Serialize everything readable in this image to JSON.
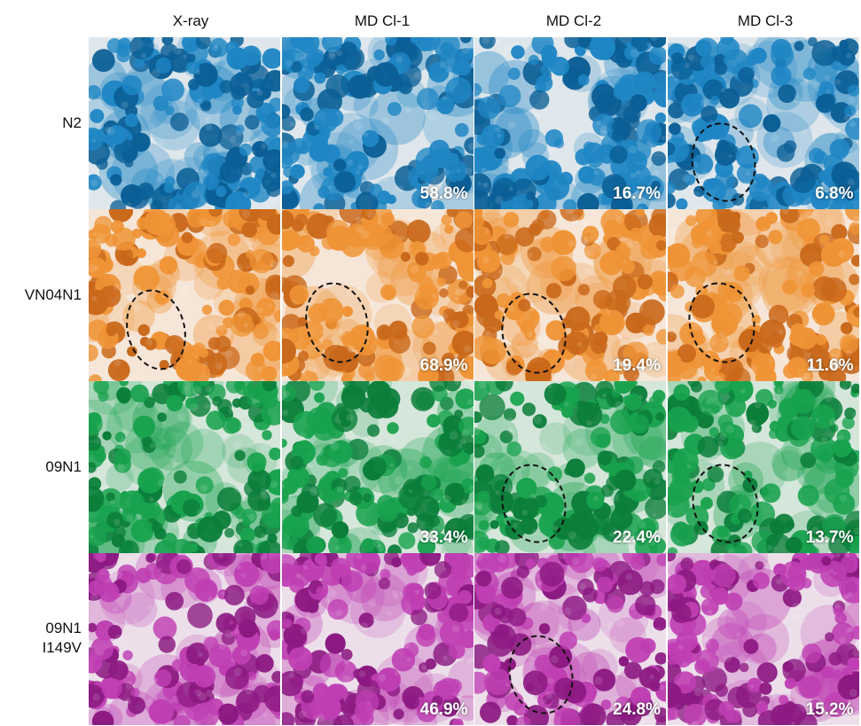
{
  "columns": [
    "X-ray",
    "MD Cl-1",
    "MD Cl-2",
    "MD Cl-3"
  ],
  "rows": [
    {
      "label_lines": [
        "N2"
      ],
      "color_dark": "#0b5f96",
      "color_mid": "#1f86c4",
      "color_light": "#dfe7ec",
      "percentages": [
        "",
        "58.8%",
        "16.7%",
        "6.8%"
      ]
    },
    {
      "label_lines": [
        "VN04N1"
      ],
      "color_dark": "#c9681a",
      "color_mid": "#ef9436",
      "color_light": "#f6e6d8",
      "percentages": [
        "",
        "68.9%",
        "19.4%",
        "11.6%"
      ]
    },
    {
      "label_lines": [
        "09N1"
      ],
      "color_dark": "#0b7e3a",
      "color_mid": "#18a24e",
      "color_light": "#d5e6da",
      "percentages": [
        "",
        "33.4%",
        "22.4%",
        "13.7%"
      ]
    },
    {
      "label_lines": [
        "09N1",
        "I149V"
      ],
      "color_dark": "#8c1a82",
      "color_mid": "#bf3fb3",
      "color_light": "#ecdfea",
      "percentages": [
        "",
        "46.9%",
        "24.8%",
        "15.2%"
      ]
    }
  ]
}
